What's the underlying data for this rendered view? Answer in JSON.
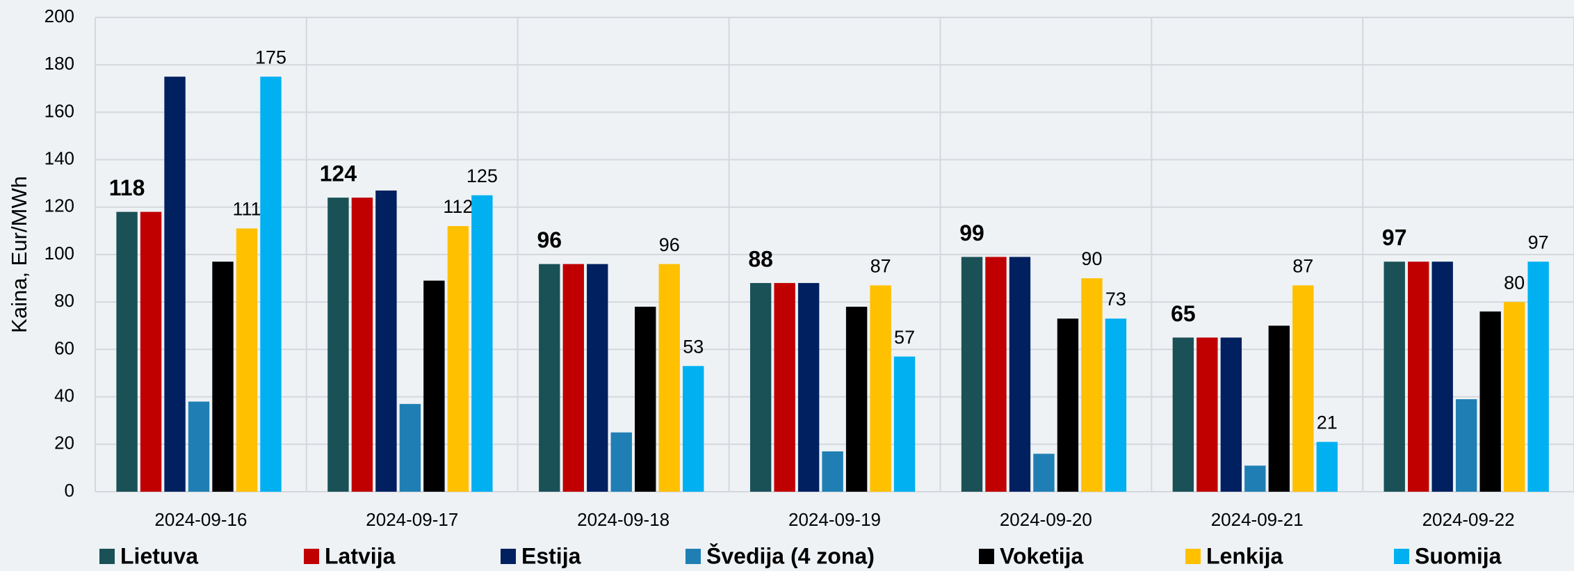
{
  "chart_data": {
    "type": "bar",
    "y_label": "Kaina, Eur/MWh",
    "categories": [
      "2024-09-16",
      "2024-09-17",
      "2024-09-18",
      "2024-09-19",
      "2024-09-20",
      "2024-09-21",
      "2024-09-22"
    ],
    "series": [
      {
        "name": "Lietuva",
        "color": "#1a5157",
        "data_labels": "bold",
        "values": [
          118,
          124,
          96,
          88,
          99,
          65,
          97
        ]
      },
      {
        "name": "Latvija",
        "color": "#c00000",
        "values": [
          118,
          124,
          96,
          88,
          99,
          65,
          97
        ]
      },
      {
        "name": "Estija",
        "color": "#002060",
        "values": [
          175,
          127,
          96,
          88,
          99,
          65,
          97
        ]
      },
      {
        "name": "Švedija (4 zona)",
        "color": "#1f7fb4",
        "values": [
          38,
          37,
          25,
          17,
          16,
          11,
          39
        ]
      },
      {
        "name": "Voketija",
        "color": "#000000",
        "values": [
          97,
          89,
          78,
          78,
          73,
          70,
          76
        ]
      },
      {
        "name": "Lenkija",
        "color": "#ffc000",
        "data_labels": "normal",
        "values": [
          111,
          112,
          96,
          87,
          90,
          87,
          80
        ]
      },
      {
        "name": "Suomija",
        "color": "#00b0f0",
        "data_labels": "normal",
        "values": [
          175,
          125,
          53,
          57,
          73,
          21,
          97
        ]
      }
    ],
    "ylim": [
      0,
      200
    ],
    "yticks": [
      0,
      20,
      40,
      60,
      80,
      100,
      120,
      140,
      160,
      180,
      200
    ],
    "grid": true
  }
}
